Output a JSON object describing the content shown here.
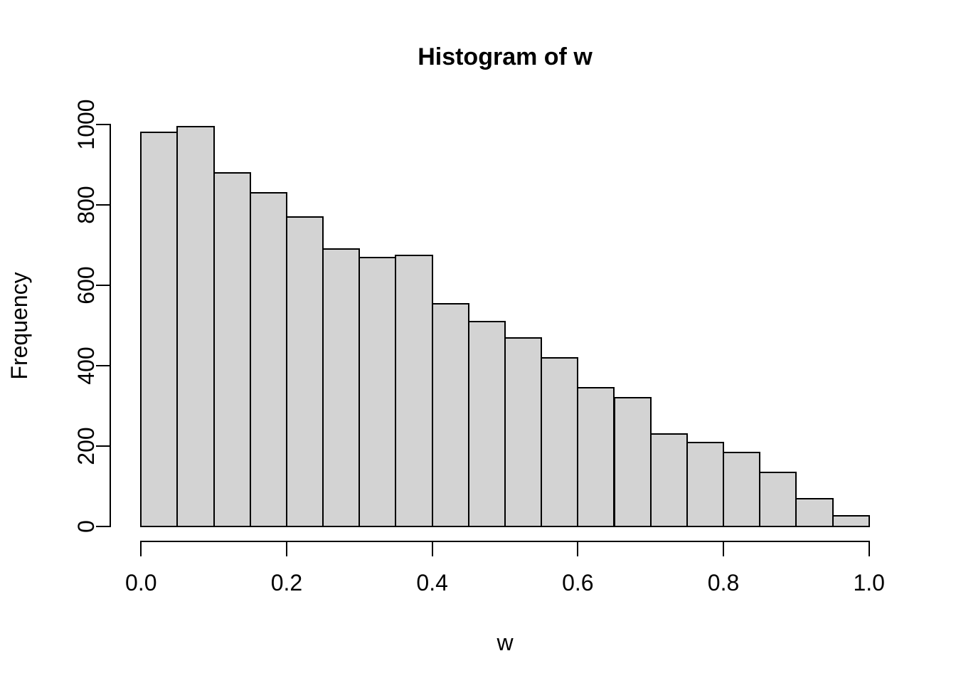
{
  "window": {
    "background_color": "#ffffff",
    "text_color": "#000000"
  },
  "chart_data": {
    "type": "bar",
    "subtype": "histogram",
    "title": "Histogram of w",
    "xlabel": "w",
    "ylabel": "Frequency",
    "xlim": [
      0.0,
      1.0
    ],
    "ylim": [
      0,
      1000
    ],
    "bin_start": 0.0,
    "bin_width": 0.05,
    "bin_edges": [
      0.0,
      0.05,
      0.1,
      0.15,
      0.2,
      0.25,
      0.3,
      0.35,
      0.4,
      0.45,
      0.5,
      0.55,
      0.6,
      0.65,
      0.7,
      0.75,
      0.8,
      0.85,
      0.9,
      0.95,
      1.0
    ],
    "values": [
      980,
      995,
      880,
      830,
      770,
      690,
      670,
      675,
      555,
      510,
      470,
      420,
      345,
      320,
      230,
      210,
      185,
      135,
      70,
      27
    ],
    "x_tick_values": [
      0.0,
      0.2,
      0.4,
      0.6,
      0.8,
      1.0
    ],
    "x_tick_labels": [
      "0.0",
      "0.2",
      "0.4",
      "0.6",
      "0.8",
      "1.0"
    ],
    "y_tick_values": [
      0,
      200,
      400,
      600,
      800,
      1000
    ],
    "y_tick_labels": [
      "0",
      "200",
      "400",
      "600",
      "800",
      "1000"
    ],
    "grid": false,
    "legend": null,
    "bar_fill_color": "#d3d3d3",
    "bar_border_color": "#000000",
    "axis_color": "#000000"
  }
}
